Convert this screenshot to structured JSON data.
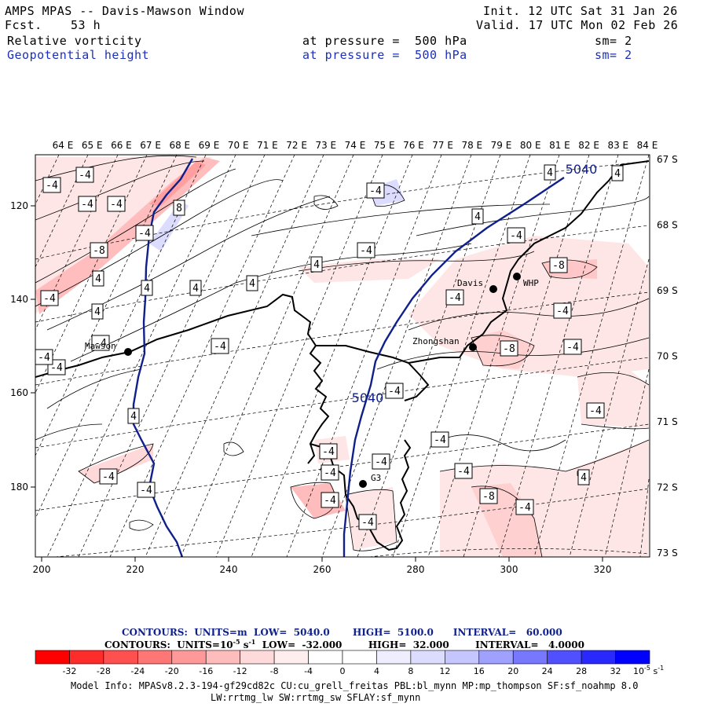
{
  "header": {
    "title": "AMPS MPAS -- Davis-Mawson Window",
    "fcst_label": "Fcst.",
    "fcst_value": "53 h",
    "init": "Init. 12 UTC Sat 31 Jan 26",
    "valid": "Valid. 17 UTC Mon 02 Feb 26",
    "field1": {
      "name": "Relative vorticity",
      "level": "at pressure =  500 hPa",
      "sm": "sm= 2"
    },
    "field2": {
      "name": "Geopotential height",
      "level": "at pressure =  500 hPa",
      "sm": "sm= 2"
    }
  },
  "map": {
    "top_lon_labels": [
      "64 E",
      "65 E",
      "66 E",
      "67 E",
      "68 E",
      "69 E",
      "70 E",
      "71 E",
      "72 E",
      "73 E",
      "74 E",
      "75 E",
      "76 E",
      "77 E",
      "78 E",
      "79 E",
      "80 E",
      "81 E",
      "82 E",
      "83 E",
      "84 E"
    ],
    "right_lat_labels": [
      "67 S",
      "68 S",
      "69 S",
      "70 S",
      "71 S",
      "72 S",
      "73 S"
    ],
    "x_ticks": [
      "200",
      "220",
      "240",
      "260",
      "280",
      "300",
      "320"
    ],
    "y_ticks": [
      "120",
      "140",
      "160",
      "180"
    ],
    "stations": [
      {
        "name": "Mawson"
      },
      {
        "name": "Davis"
      },
      {
        "name": "WHP"
      },
      {
        "name": "Zhongshan"
      },
      {
        "name": "G3"
      }
    ],
    "height_labels": [
      "5040",
      "5040"
    ],
    "vort_labels": [
      "-4",
      "-4",
      "-4",
      "-4",
      "-4",
      "-8",
      "8",
      "-4",
      "4",
      "4",
      "4",
      "4",
      "-4",
      "-4",
      "4",
      "-4",
      "4",
      "-4",
      "4",
      "-4",
      "-4",
      "-4",
      "-4",
      "4",
      "-4",
      "-8",
      "-4",
      "-4",
      "-8",
      "-4",
      "-4",
      "-4",
      "4",
      "-4",
      "-4",
      "-4",
      "-8",
      "-4",
      "-4",
      "-4",
      "-4",
      "-4",
      "4",
      "4"
    ],
    "colors": {
      "height_contour": "#10208a",
      "coast": "#000000",
      "grid": "#000000"
    }
  },
  "captions": {
    "line1": "CONTOURS:  UNITS=m  LOW=  5040.0       HIGH=  5100.0      INTERVAL=   60.000",
    "line2_a": "CONTOURS:  UNITS=10",
    "line2_sup": "-5",
    "line2_b": " s",
    "line2_sup2": "-1",
    "line2_c": "  LOW=  -32.000        HIGH=  32.000        INTERVAL=   4.0000"
  },
  "colorbar": {
    "labels": [
      "-32",
      "-28",
      "-24",
      "-20",
      "-16",
      "-12",
      "-8",
      "-4",
      "0",
      "4",
      "8",
      "12",
      "16",
      "20",
      "24",
      "28",
      "32"
    ],
    "unit": "10",
    "unit_sup": "-5",
    "unit_tail": " s",
    "unit_sup2": "-1",
    "colors": [
      "#ff0000",
      "#ff2c2c",
      "#ff5050",
      "#ff7676",
      "#ff9999",
      "#ffbcbc",
      "#ffdada",
      "#ffeeee",
      "#ffffff",
      "#ffffff",
      "#eeeeff",
      "#c6c6ff",
      "#a0a0ff",
      "#7878ff",
      "#5050ff",
      "#2828ff",
      "#0000ff"
    ]
  },
  "footer": {
    "line1": "Model Info: MPASv8.2.3-194-gf29cd82c CU:cu_grell_freitas PBL:bl_mynn MP:mp_thompson SF:sf_noahmp 8.0",
    "line2": "LW:rrtmg_lw SW:rrtmg_sw SFLAY:sf_mynn"
  }
}
